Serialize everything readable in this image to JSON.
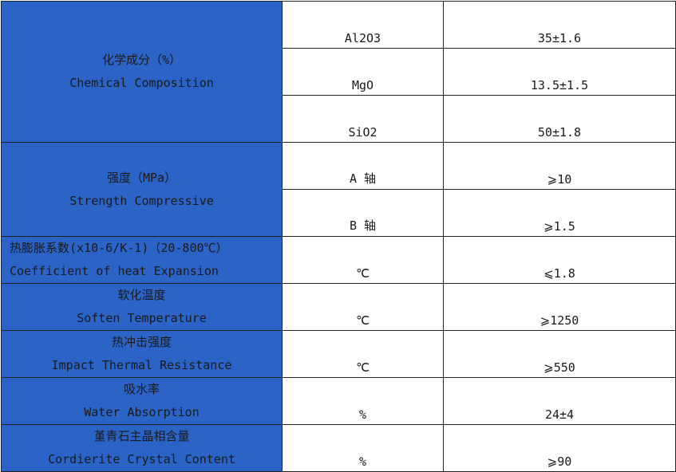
{
  "rows": [
    {
      "zh": "化学成分（%）",
      "en": "Chemical Composition",
      "items": [
        [
          "Al2O3",
          "35±1.6"
        ],
        [
          "MgO",
          "13.5±1.5"
        ],
        [
          "SiO2",
          "50±1.8"
        ]
      ]
    },
    {
      "zh": "强度（MPa）",
      "en": "Strength Compressive",
      "items": [
        [
          "A 轴",
          "⩾10"
        ],
        [
          "B 轴",
          "⩾1.5"
        ]
      ]
    },
    {
      "zh": "热膨胀系数(x10-6/K-1)（20-800℃）",
      "en": "Coefficient of heat Expansion",
      "items": [
        [
          "℃",
          "⩽1.8"
        ]
      ]
    },
    {
      "zh": "软化温度",
      "en": "Soften Temperature",
      "items": [
        [
          "℃",
          "⩾1250"
        ]
      ]
    },
    {
      "zh": "热冲击强度",
      "en": "Impact Thermal Resistance",
      "items": [
        [
          "℃",
          "⩾550"
        ]
      ]
    },
    {
      "zh": "吸水率",
      "en": "Water Absorption",
      "items": [
        [
          "%",
          "24±4"
        ]
      ]
    },
    {
      "zh": "堇青石主晶相含量",
      "en": "Cordierite Crystal Content",
      "items": [
        [
          "%",
          "⩾90"
        ]
      ]
    }
  ],
  "colors": {
    "header_blue": "#2B63C6"
  }
}
